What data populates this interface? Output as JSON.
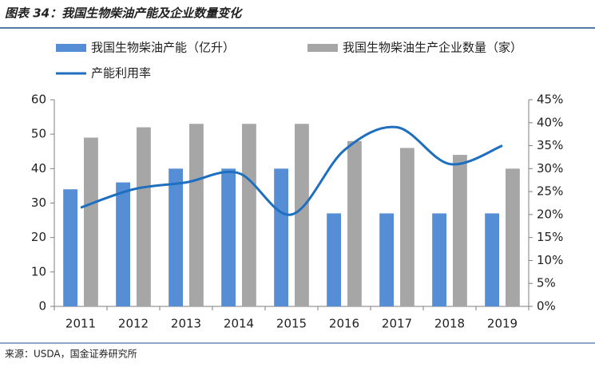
{
  "chart_data": {
    "type": "bar",
    "title": "图表 34：我国生物柴油产能及企业数量变化",
    "source": "来源：USDA，国金证券研究所",
    "categories": [
      "2011",
      "2012",
      "2013",
      "2014",
      "2015",
      "2016",
      "2017",
      "2018",
      "2019"
    ],
    "series": [
      {
        "name": "我国生物柴油产能（亿升）",
        "type": "bar",
        "color": "#558ed5",
        "values": [
          34,
          36,
          40,
          40,
          40,
          27,
          27,
          27,
          27
        ]
      },
      {
        "name": "我国生物柴油生产企业数量（家）",
        "type": "bar",
        "color": "#a6a6a6",
        "values": [
          49,
          52,
          53,
          53,
          53,
          48,
          46,
          44,
          40
        ]
      },
      {
        "name": "产能利用率",
        "type": "line",
        "axis": "y2",
        "color": "#1f6fc0",
        "values": [
          21.5,
          25.5,
          27,
          29,
          20,
          34,
          39,
          31,
          35
        ]
      }
    ],
    "ylim": [
      0,
      60
    ],
    "yticks": [
      0,
      10,
      20,
      30,
      40,
      50,
      60
    ],
    "y2lim": [
      0,
      45
    ],
    "y2ticks": [
      {
        "value": 0,
        "label": "0%"
      },
      {
        "value": 5,
        "label": "5%"
      },
      {
        "value": 10,
        "label": "10%"
      },
      {
        "value": 15,
        "label": "15%"
      },
      {
        "value": 20,
        "label": "20%"
      },
      {
        "value": 25,
        "label": "25%"
      },
      {
        "value": 30,
        "label": "30%"
      },
      {
        "value": 35,
        "label": "35%"
      },
      {
        "value": 40,
        "label": "40%"
      },
      {
        "value": 45,
        "label": "45%"
      }
    ],
    "grid": false
  }
}
